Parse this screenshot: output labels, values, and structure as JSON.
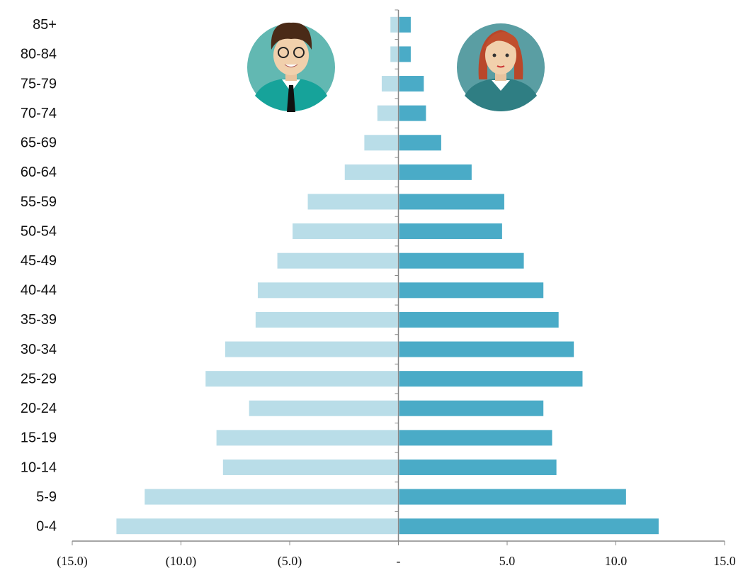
{
  "chart_data": {
    "type": "pyramid",
    "categories": [
      "0-4",
      "5-9",
      "10-14",
      "15-19",
      "20-24",
      "25-29",
      "30-34",
      "35-39",
      "40-44",
      "45-49",
      "50-54",
      "55-59",
      "60-64",
      "65-69",
      "70-74",
      "75-79",
      "80-84",
      "85+"
    ],
    "series": [
      {
        "color": "#b9dde8",
        "values": [
          -13.0,
          -11.7,
          -8.1,
          -8.4,
          -6.9,
          -8.9,
          -8.0,
          -6.6,
          -6.5,
          -5.6,
          -4.9,
          -4.2,
          -2.5,
          -1.6,
          -1.0,
          -0.8,
          -0.4,
          -0.4
        ]
      },
      {
        "color": "#4aabc7",
        "values": [
          12.0,
          10.5,
          7.3,
          7.1,
          6.7,
          8.5,
          8.1,
          7.4,
          6.7,
          5.8,
          4.8,
          4.9,
          3.4,
          2.0,
          1.3,
          1.2,
          0.6,
          0.6
        ]
      }
    ],
    "xlim": [
      -15,
      15
    ],
    "xticks": [
      {
        "value": -15,
        "label": "(15.0)"
      },
      {
        "value": -10,
        "label": "(10.0)"
      },
      {
        "value": -5,
        "label": "(5.0)"
      },
      {
        "value": 0,
        "label": "-"
      },
      {
        "value": 5,
        "label": "5.0"
      },
      {
        "value": 10,
        "label": "10.0"
      },
      {
        "value": 15,
        "label": "15.0"
      }
    ]
  }
}
